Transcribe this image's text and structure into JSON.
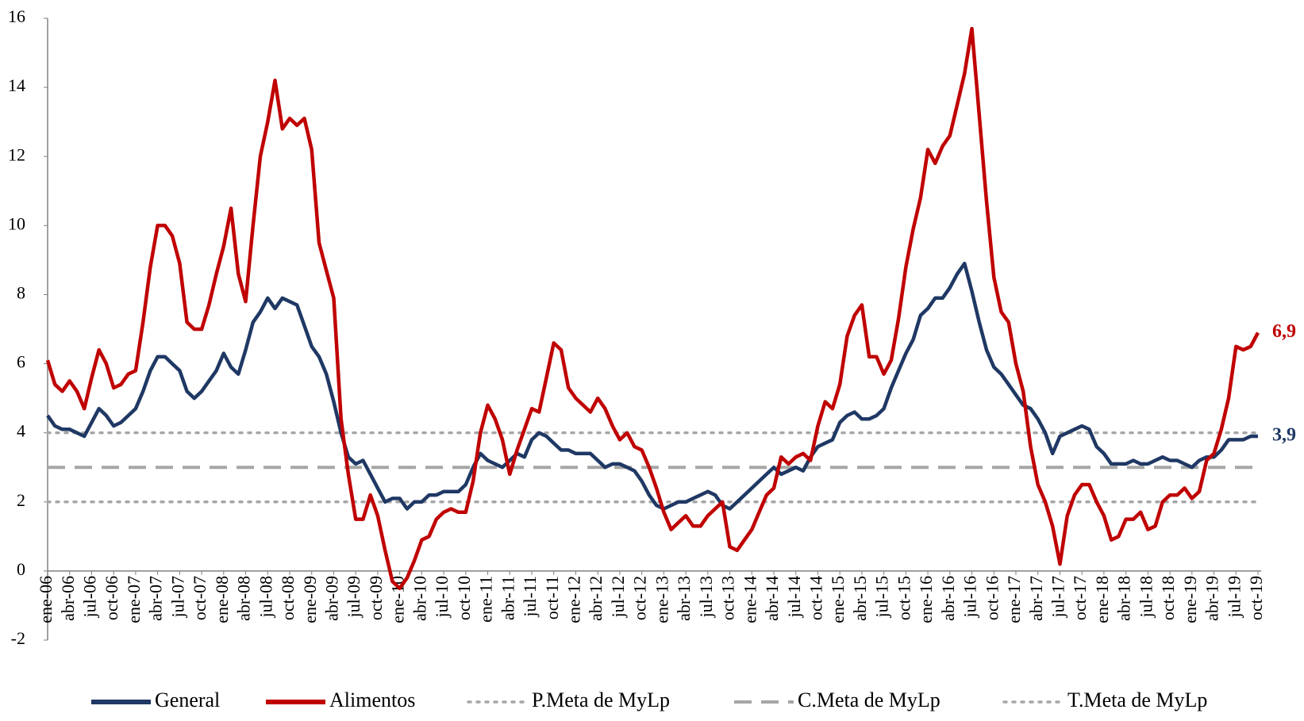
{
  "chart_data": {
    "type": "line",
    "categories": [
      "ene-06",
      null,
      null,
      "abr-06",
      null,
      null,
      "jul-06",
      null,
      null,
      "oct-06",
      null,
      null,
      "ene-07",
      null,
      null,
      "abr-07",
      null,
      null,
      "jul-07",
      null,
      null,
      "oct-07",
      null,
      null,
      "ene-08",
      null,
      null,
      "abr-08",
      null,
      null,
      "jul-08",
      null,
      null,
      "oct-08",
      null,
      null,
      "ene-09",
      null,
      null,
      "abr-09",
      null,
      null,
      "jul-09",
      null,
      null,
      "oct-09",
      null,
      null,
      "ene-10",
      null,
      null,
      "abr-10",
      null,
      null,
      "jul-10",
      null,
      null,
      "oct-10",
      null,
      null,
      "ene-11",
      null,
      null,
      "abr-11",
      null,
      null,
      "jul-11",
      null,
      null,
      "oct-11",
      null,
      null,
      "ene-12",
      null,
      null,
      "abr-12",
      null,
      null,
      "jul-12",
      null,
      null,
      "oct-12",
      null,
      null,
      "ene-13",
      null,
      null,
      "abr-13",
      null,
      null,
      "jul-13",
      null,
      null,
      "oct-13",
      null,
      null,
      "ene-14",
      null,
      null,
      "abr-14",
      null,
      null,
      "jul-14",
      null,
      null,
      "oct-14",
      null,
      null,
      "ene-15",
      null,
      null,
      "abr-15",
      null,
      null,
      "jul-15",
      null,
      null,
      "oct-15",
      null,
      null,
      "ene-16",
      null,
      null,
      "abr-16",
      null,
      null,
      "jul-16",
      null,
      null,
      "oct-16",
      null,
      null,
      "ene-17",
      null,
      null,
      "abr-17",
      null,
      null,
      "jul-17",
      null,
      null,
      "oct-17",
      null,
      null,
      "ene-18",
      null,
      null,
      "abr-18",
      null,
      null,
      "jul-18",
      null,
      null,
      "oct-18",
      null,
      null,
      "ene-19",
      null,
      null,
      "abr-19",
      null,
      null,
      "jul-19",
      null,
      null,
      "oct-19"
    ],
    "series": [
      {
        "name": "General",
        "color": "#1f3864",
        "values": [
          4.5,
          4.2,
          4.1,
          4.1,
          4.0,
          3.9,
          4.3,
          4.7,
          4.5,
          4.2,
          4.3,
          4.5,
          4.7,
          5.2,
          5.8,
          6.2,
          6.2,
          6.0,
          5.8,
          5.2,
          5.0,
          5.2,
          5.5,
          5.8,
          6.3,
          5.9,
          5.7,
          6.4,
          7.2,
          7.5,
          7.9,
          7.6,
          7.9,
          7.8,
          7.7,
          7.1,
          6.5,
          6.2,
          5.7,
          4.9,
          4.0,
          3.3,
          3.1,
          3.2,
          2.8,
          2.4,
          2.0,
          2.1,
          2.1,
          1.8,
          2.0,
          2.0,
          2.2,
          2.2,
          2.3,
          2.3,
          2.3,
          2.5,
          3.0,
          3.4,
          3.2,
          3.1,
          3.0,
          3.2,
          3.4,
          3.3,
          3.8,
          4.0,
          3.9,
          3.7,
          3.5,
          3.5,
          3.4,
          3.4,
          3.4,
          3.2,
          3.0,
          3.1,
          3.1,
          3.0,
          2.9,
          2.6,
          2.2,
          1.9,
          1.8,
          1.9,
          2.0,
          2.0,
          2.1,
          2.2,
          2.3,
          2.2,
          1.9,
          1.8,
          2.0,
          2.2,
          2.4,
          2.6,
          2.8,
          3.0,
          2.8,
          2.9,
          3.0,
          2.9,
          3.3,
          3.6,
          3.7,
          3.8,
          4.3,
          4.5,
          4.6,
          4.4,
          4.4,
          4.5,
          4.7,
          5.3,
          5.8,
          6.3,
          6.7,
          7.4,
          7.6,
          7.9,
          7.9,
          8.2,
          8.6,
          8.9,
          8.1,
          7.2,
          6.4,
          5.9,
          5.7,
          5.4,
          5.1,
          4.8,
          4.7,
          4.4,
          4.0,
          3.4,
          3.9,
          4.0,
          4.1,
          4.2,
          4.1,
          3.6,
          3.4,
          3.1,
          3.1,
          3.1,
          3.2,
          3.1,
          3.1,
          3.2,
          3.3,
          3.2,
          3.2,
          3.1,
          3.0,
          3.2,
          3.3,
          3.3,
          3.5,
          3.8,
          3.8,
          3.8,
          3.9,
          3.9
        ],
        "value_labels": [
          null,
          null,
          null,
          null,
          null,
          null,
          null,
          null,
          null,
          null,
          null,
          null,
          null,
          null,
          null,
          null,
          null,
          null,
          null,
          null,
          null,
          null,
          null,
          null,
          null,
          null,
          null,
          null,
          null,
          null,
          null,
          null,
          null,
          null,
          null,
          null,
          null,
          null,
          null,
          null,
          null,
          null,
          null,
          null,
          null,
          null,
          null,
          null,
          null,
          null,
          null,
          null,
          null,
          null,
          null,
          null,
          null,
          null,
          null,
          null,
          null,
          null,
          null,
          null,
          null,
          null,
          null,
          null,
          null,
          null,
          null,
          null,
          null,
          null,
          null,
          null,
          null,
          null,
          null,
          null,
          null,
          null,
          null,
          null,
          null,
          null,
          null,
          null,
          null,
          null,
          null,
          null,
          null,
          null,
          null,
          null,
          null,
          null,
          null,
          null,
          null,
          null,
          null,
          null,
          null,
          null,
          null,
          null,
          null,
          null,
          null,
          null,
          null,
          null,
          null,
          null,
          null,
          null,
          null,
          null,
          null,
          null,
          null,
          null,
          null,
          null,
          null,
          null,
          null,
          null,
          null,
          null,
          null,
          null,
          null,
          null,
          null,
          null,
          null,
          null,
          null,
          null,
          null,
          null,
          null,
          null,
          null,
          null,
          null,
          null,
          null,
          null,
          null,
          null,
          null,
          null,
          null,
          null,
          null,
          null,
          null,
          null,
          null,
          null,
          null,
          "3,9"
        ]
      },
      {
        "name": "Alimentos",
        "color": "#c00000",
        "values": [
          6.1,
          5.4,
          5.2,
          5.5,
          5.2,
          4.7,
          5.6,
          6.4,
          6.0,
          5.3,
          5.4,
          5.7,
          5.8,
          7.2,
          8.8,
          10.0,
          10.0,
          9.7,
          8.9,
          7.2,
          7.0,
          7.0,
          7.7,
          8.6,
          9.4,
          10.5,
          8.6,
          7.8,
          10.0,
          12.0,
          13.0,
          14.2,
          12.8,
          13.1,
          12.9,
          13.1,
          12.2,
          9.5,
          8.7,
          7.9,
          4.4,
          2.8,
          1.5,
          1.5,
          2.2,
          1.6,
          0.6,
          -0.3,
          -0.5,
          -0.2,
          0.3,
          0.9,
          1.0,
          1.5,
          1.7,
          1.8,
          1.7,
          1.7,
          2.6,
          4.0,
          4.8,
          4.4,
          3.8,
          2.8,
          3.5,
          4.1,
          4.7,
          4.6,
          5.6,
          6.6,
          6.4,
          5.3,
          5.0,
          4.8,
          4.6,
          5.0,
          4.7,
          4.2,
          3.8,
          4.0,
          3.6,
          3.5,
          3.0,
          2.4,
          1.7,
          1.2,
          1.4,
          1.6,
          1.3,
          1.3,
          1.6,
          1.8,
          2.0,
          0.7,
          0.6,
          0.9,
          1.2,
          1.7,
          2.2,
          2.4,
          3.3,
          3.1,
          3.3,
          3.4,
          3.2,
          4.2,
          4.9,
          4.7,
          5.4,
          6.8,
          7.4,
          7.7,
          6.2,
          6.2,
          5.7,
          6.1,
          7.3,
          8.8,
          9.9,
          10.8,
          12.2,
          11.8,
          12.3,
          12.6,
          13.5,
          14.4,
          15.7,
          13.2,
          10.7,
          8.5,
          7.5,
          7.2,
          6.0,
          5.2,
          3.6,
          2.5,
          2.0,
          1.3,
          0.2,
          1.6,
          2.2,
          2.5,
          2.5,
          2.0,
          1.6,
          0.9,
          1.0,
          1.5,
          1.5,
          1.7,
          1.2,
          1.3,
          2.0,
          2.2,
          2.2,
          2.4,
          2.1,
          2.3,
          3.2,
          3.4,
          4.1,
          5.0,
          6.5,
          6.4,
          6.5,
          6.9
        ],
        "value_labels": [
          null,
          null,
          null,
          null,
          null,
          null,
          null,
          null,
          null,
          null,
          null,
          null,
          null,
          null,
          null,
          null,
          null,
          null,
          null,
          null,
          null,
          null,
          null,
          null,
          null,
          null,
          null,
          null,
          null,
          null,
          null,
          null,
          null,
          null,
          null,
          null,
          null,
          null,
          null,
          null,
          null,
          null,
          null,
          null,
          null,
          null,
          null,
          null,
          null,
          null,
          null,
          null,
          null,
          null,
          null,
          null,
          null,
          null,
          null,
          null,
          null,
          null,
          null,
          null,
          null,
          null,
          null,
          null,
          null,
          null,
          null,
          null,
          null,
          null,
          null,
          null,
          null,
          null,
          null,
          null,
          null,
          null,
          null,
          null,
          null,
          null,
          null,
          null,
          null,
          null,
          null,
          null,
          null,
          null,
          null,
          null,
          null,
          null,
          null,
          null,
          null,
          null,
          null,
          null,
          null,
          null,
          null,
          null,
          null,
          null,
          null,
          null,
          null,
          null,
          null,
          null,
          null,
          null,
          null,
          null,
          null,
          null,
          null,
          null,
          null,
          null,
          null,
          null,
          null,
          null,
          null,
          null,
          null,
          null,
          null,
          null,
          null,
          null,
          null,
          null,
          null,
          null,
          null,
          null,
          null,
          null,
          null,
          null,
          null,
          null,
          null,
          null,
          null,
          null,
          null,
          null,
          null,
          null,
          null,
          null,
          null,
          null,
          null,
          null,
          null,
          "6,9"
        ]
      }
    ],
    "reference_lines": [
      {
        "name": "P.Meta de MyLp",
        "value": 4,
        "style": "dotted",
        "color": "#a6a6a6"
      },
      {
        "name": "C.Meta de MyLp",
        "value": 3,
        "style": "dashed",
        "color": "#a6a6a6"
      },
      {
        "name": "T.Meta de MyLp",
        "value": 2,
        "style": "dotted",
        "color": "#a6a6a6"
      }
    ],
    "ylim": [
      -2,
      16
    ],
    "yticks": [
      -2,
      0,
      2,
      4,
      6,
      8,
      10,
      12,
      14,
      16
    ],
    "grid": false,
    "legend": "bottom"
  }
}
